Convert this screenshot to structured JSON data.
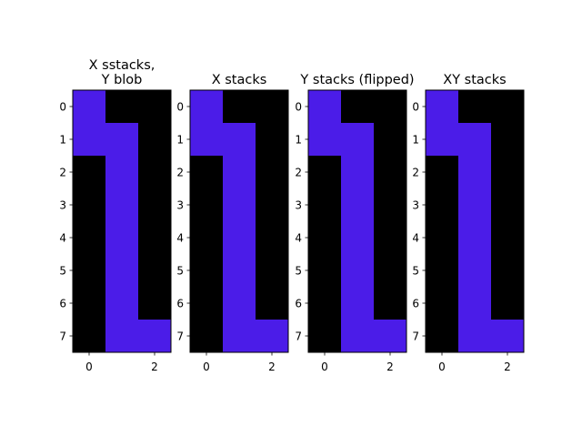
{
  "chart_data": [
    {
      "type": "heatmap",
      "title": "X sstacks,\nY blob",
      "xticks": [
        "0",
        "2"
      ],
      "yticks": [
        "0",
        "1",
        "2",
        "3",
        "4",
        "5",
        "6",
        "7"
      ],
      "grid": false,
      "colors": {
        "off": "#000000",
        "on": "#4b1ce8"
      },
      "matrix": [
        [
          1,
          0,
          0
        ],
        [
          1,
          1,
          0
        ],
        [
          0,
          1,
          0
        ],
        [
          0,
          1,
          0
        ],
        [
          0,
          1,
          0
        ],
        [
          0,
          1,
          0
        ],
        [
          0,
          1,
          0
        ],
        [
          0,
          1,
          1
        ]
      ]
    },
    {
      "type": "heatmap",
      "title": "X stacks",
      "xticks": [
        "0",
        "2"
      ],
      "yticks": [
        "0",
        "1",
        "2",
        "3",
        "4",
        "5",
        "6",
        "7"
      ],
      "grid": false,
      "colors": {
        "off": "#000000",
        "on": "#4b1ce8"
      },
      "matrix": [
        [
          1,
          0,
          0
        ],
        [
          1,
          1,
          0
        ],
        [
          0,
          1,
          0
        ],
        [
          0,
          1,
          0
        ],
        [
          0,
          1,
          0
        ],
        [
          0,
          1,
          0
        ],
        [
          0,
          1,
          0
        ],
        [
          0,
          1,
          1
        ]
      ]
    },
    {
      "type": "heatmap",
      "title": "Y stacks (flipped)",
      "xticks": [
        "0",
        "2"
      ],
      "yticks": [
        "0",
        "1",
        "2",
        "3",
        "4",
        "5",
        "6",
        "7"
      ],
      "grid": false,
      "colors": {
        "off": "#000000",
        "on": "#4b1ce8"
      },
      "matrix": [
        [
          1,
          0,
          0
        ],
        [
          1,
          1,
          0
        ],
        [
          0,
          1,
          0
        ],
        [
          0,
          1,
          0
        ],
        [
          0,
          1,
          0
        ],
        [
          0,
          1,
          0
        ],
        [
          0,
          1,
          0
        ],
        [
          0,
          1,
          1
        ]
      ]
    },
    {
      "type": "heatmap",
      "title": "XY stacks",
      "xticks": [
        "0",
        "2"
      ],
      "yticks": [
        "0",
        "1",
        "2",
        "3",
        "4",
        "5",
        "6",
        "7"
      ],
      "grid": false,
      "colors": {
        "off": "#000000",
        "on": "#4b1ce8"
      },
      "matrix": [
        [
          1,
          0,
          0
        ],
        [
          1,
          1,
          0
        ],
        [
          0,
          1,
          0
        ],
        [
          0,
          1,
          0
        ],
        [
          0,
          1,
          0
        ],
        [
          0,
          1,
          0
        ],
        [
          0,
          1,
          0
        ],
        [
          0,
          1,
          1
        ]
      ]
    }
  ]
}
